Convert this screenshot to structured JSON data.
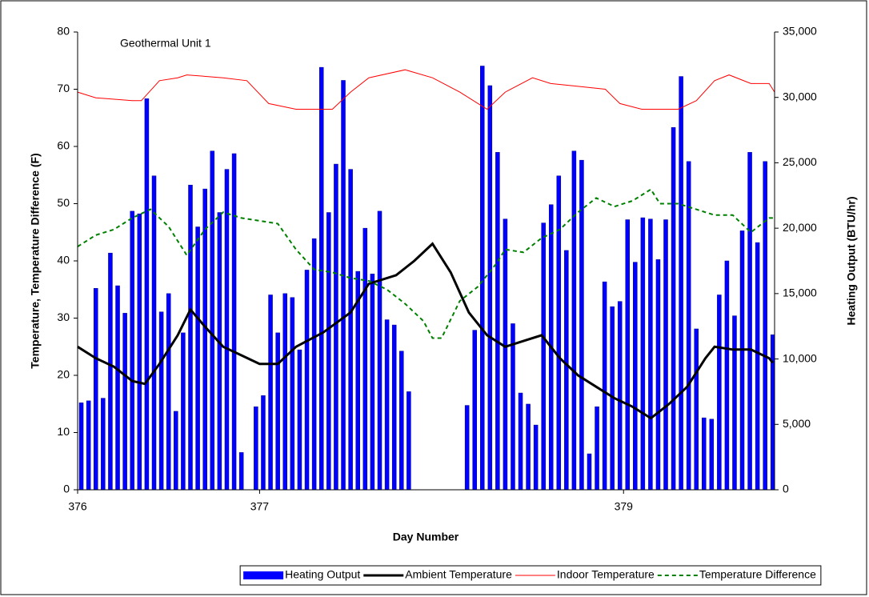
{
  "chart_data": {
    "type": "bar-line",
    "annotation": "Geothermal Unit 1",
    "xlabel": "Day Number",
    "ylabel": "Temperature, Temperature Difference (F)",
    "y2label": "Heating Output (BTU/hr)",
    "xlim": [
      376,
      379.83
    ],
    "xticks": [
      376,
      377,
      379
    ],
    "ylim": [
      0,
      80
    ],
    "yticks": [
      0,
      10,
      20,
      30,
      40,
      50,
      60,
      70,
      80
    ],
    "y2lim": [
      0,
      35000
    ],
    "y2ticks": [
      0,
      {
        "value": 5000,
        "label": "5,000"
      },
      {
        "value": 10000,
        "label": "10,000"
      },
      {
        "value": 15000,
        "label": "15,000"
      },
      {
        "value": 20000,
        "label": "20,000"
      },
      {
        "value": 25000,
        "label": "25,000"
      },
      {
        "value": 30000,
        "label": "30,000"
      },
      {
        "value": 35000,
        "label": "35,000"
      }
    ],
    "legend": "bottom",
    "series": [
      {
        "name": "Heating Output",
        "type": "bar",
        "axis": "y2",
        "color": "#0000ff",
        "x": [
          376.02,
          376.06,
          376.1,
          376.14,
          376.18,
          376.22,
          376.26,
          376.3,
          376.34,
          376.38,
          376.42,
          376.46,
          376.5,
          376.54,
          376.58,
          376.62,
          376.66,
          376.7,
          376.74,
          376.78,
          376.82,
          376.86,
          376.9,
          376.98,
          377.02,
          377.06,
          377.1,
          377.14,
          377.18,
          377.22,
          377.26,
          377.3,
          377.34,
          377.38,
          377.42,
          377.46,
          377.5,
          377.54,
          377.58,
          377.62,
          377.66,
          377.7,
          377.74,
          377.78,
          377.82,
          378.14,
          378.182,
          378.224,
          378.266,
          378.308,
          378.35,
          378.392,
          378.434,
          378.476,
          378.518,
          378.56,
          378.602,
          378.644,
          378.686,
          378.728,
          378.77,
          378.812,
          378.854,
          378.896,
          378.938,
          378.98,
          379.022,
          379.064,
          379.106,
          379.148,
          379.19,
          379.232,
          379.274,
          379.316,
          379.358,
          379.4,
          379.442,
          379.484,
          379.526,
          379.568,
          379.61,
          379.652,
          379.694,
          379.736,
          379.778,
          379.82
        ],
        "values": [
          6650,
          6800,
          15400,
          7000,
          18100,
          15600,
          13500,
          21300,
          21100,
          29900,
          24000,
          13600,
          15000,
          6000,
          12000,
          23300,
          20100,
          23000,
          25900,
          21200,
          24500,
          25700,
          2850,
          6350,
          7200,
          14900,
          12000,
          15000,
          14700,
          10700,
          16800,
          19200,
          32300,
          21200,
          24900,
          31300,
          24500,
          16700,
          20000,
          16500,
          21300,
          13000,
          12600,
          10600,
          7500,
          6450,
          12200,
          32400,
          30900,
          25800,
          20700,
          12700,
          7400,
          6550,
          4950,
          20400,
          21800,
          24000,
          18300,
          25900,
          25200,
          2750,
          6350,
          15900,
          14000,
          14400,
          20650,
          17400,
          20800,
          20700,
          17600,
          20650,
          27700,
          31600,
          25100,
          12300,
          5500,
          5400,
          14900,
          17500,
          13300,
          19800,
          25800,
          18900,
          25100,
          11850
        ]
      },
      {
        "name": "Ambient Temperature",
        "type": "line",
        "color": "#000000",
        "line_style": "thick",
        "x": [
          376,
          376.1,
          376.2,
          376.3,
          376.37,
          376.45,
          376.55,
          376.62,
          376.7,
          376.8,
          376.9,
          377,
          377.1,
          377.2,
          377.35,
          377.5,
          377.6,
          377.75,
          377.85,
          377.95,
          378.05,
          378.15,
          378.25,
          378.35,
          378.45,
          378.55,
          378.65,
          378.75,
          378.85,
          378.95,
          379.05,
          379.15,
          379.25,
          379.35,
          379.45,
          379.5,
          379.6,
          379.7,
          379.8,
          379.82
        ],
        "values": [
          25,
          23,
          21.5,
          19,
          18.5,
          22,
          27,
          31.5,
          28.5,
          25,
          23.5,
          22,
          22,
          25,
          27.5,
          31,
          36,
          37.5,
          40,
          43,
          38,
          31,
          27,
          25,
          26,
          27,
          23,
          20,
          18,
          16,
          14.5,
          12.5,
          15,
          18,
          23,
          25,
          24.5,
          24.5,
          23,
          22.2
        ]
      },
      {
        "name": "Indoor Temperature",
        "type": "line",
        "color": "#ff0000",
        "line_style": "thin",
        "x": [
          376,
          376.1,
          376.3,
          376.35,
          376.45,
          376.55,
          376.6,
          376.8,
          376.93,
          377.05,
          377.2,
          377.4,
          377.5,
          377.6,
          377.8,
          377.95,
          378.1,
          378.25,
          378.35,
          378.5,
          378.6,
          378.75,
          378.9,
          378.98,
          379.1,
          379.3,
          379.4,
          379.5,
          379.58,
          379.7,
          379.8,
          379.83
        ],
        "values": [
          69.5,
          68.5,
          68,
          68,
          71.5,
          72,
          72.5,
          72,
          71.5,
          67.5,
          66.5,
          66.5,
          69.5,
          72,
          73.4,
          72,
          69.5,
          66.5,
          69.5,
          72,
          71,
          70.5,
          70,
          67.5,
          66.5,
          66.5,
          68,
          71.5,
          72.5,
          71,
          71,
          69.5
        ]
      },
      {
        "name": "Temperature Difference",
        "type": "line",
        "color": "#008000",
        "line_style": "dashed",
        "x": [
          376,
          376.1,
          376.2,
          376.3,
          376.4,
          376.5,
          376.6,
          376.7,
          376.8,
          376.9,
          377,
          377.1,
          377.2,
          377.3,
          377.4,
          377.5,
          377.6,
          377.7,
          377.8,
          377.9,
          377.95,
          378,
          378.1,
          378.2,
          378.3,
          378.35,
          378.45,
          378.55,
          378.65,
          378.75,
          378.85,
          378.95,
          379.05,
          379.15,
          379.2,
          379.3,
          379.4,
          379.5,
          379.6,
          379.7,
          379.8,
          379.83
        ],
        "values": [
          42.5,
          44.5,
          45.5,
          47.5,
          49,
          46,
          41,
          45.5,
          48.5,
          47.5,
          47,
          46.5,
          42,
          38.5,
          38,
          37,
          36.5,
          35,
          32.5,
          29.5,
          26.5,
          26.5,
          33,
          35.5,
          39.5,
          42,
          41.5,
          44,
          45.5,
          48.5,
          51,
          49.5,
          50.5,
          52.5,
          50,
          50,
          49,
          48,
          48,
          45,
          47.5,
          47.5
        ]
      }
    ]
  }
}
